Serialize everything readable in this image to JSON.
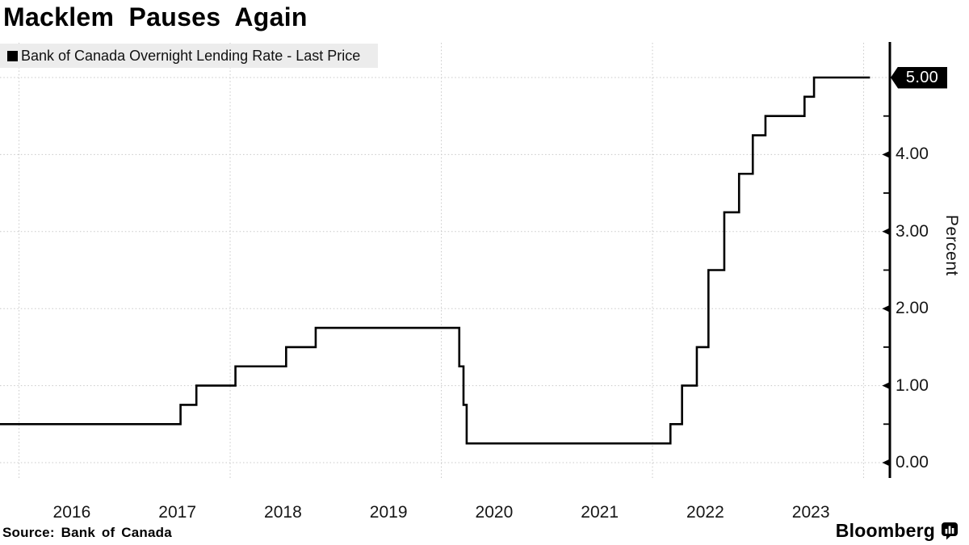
{
  "header": {
    "title": "Macklem Pauses Again"
  },
  "legend": {
    "swatch_color": "#000000",
    "label": "Bank of Canada Overnight Lending Rate - Last Price"
  },
  "footer": {
    "source": "Source: Bank of Canada",
    "brand": "Bloomberg",
    "brand_icon": "bloomberg-bars-bubble-icon"
  },
  "y_axis": {
    "axis_label": "Percent",
    "ticks": [
      {
        "value": 0,
        "label": "0.00"
      },
      {
        "value": 1,
        "label": "1.00"
      },
      {
        "value": 2,
        "label": "2.00"
      },
      {
        "value": 3,
        "label": "3.00"
      },
      {
        "value": 4,
        "label": "4.00"
      }
    ],
    "minor_tick_values": [
      0.5,
      1.5,
      2.5,
      3.5,
      4.5
    ],
    "last_price_label": "5.00",
    "last_price_value": 5.0
  },
  "x_axis": {
    "ticks": [
      {
        "t": 2016.5,
        "label": "2016"
      },
      {
        "t": 2017.5,
        "label": "2017"
      },
      {
        "t": 2018.5,
        "label": "2018"
      },
      {
        "t": 2019.5,
        "label": "2019"
      },
      {
        "t": 2020.5,
        "label": "2020"
      },
      {
        "t": 2021.5,
        "label": "2021"
      },
      {
        "t": 2022.5,
        "label": "2022"
      },
      {
        "t": 2023.5,
        "label": "2023"
      }
    ],
    "gridline_years": [
      2016,
      2018,
      2020,
      2022,
      2024
    ]
  },
  "chart_data": {
    "type": "line",
    "step": true,
    "title": "Macklem Pauses Again",
    "xlabel": "",
    "ylabel": "Percent",
    "grid": "dotted",
    "legend_position": "top-left",
    "x_domain_years": [
      2015.82,
      2024.25
    ],
    "ylim": [
      -0.2,
      5.45
    ],
    "y_major_gridlines": [
      0,
      1,
      2,
      3,
      4,
      5
    ],
    "last_price": 5.0,
    "series": [
      {
        "name": "Bank of Canada Overnight Lending Rate - Last Price",
        "units": "percent",
        "points": [
          [
            2015.82,
            0.5
          ],
          [
            2017.53,
            0.75
          ],
          [
            2017.68,
            1.0
          ],
          [
            2018.05,
            1.25
          ],
          [
            2018.53,
            1.5
          ],
          [
            2018.81,
            1.75
          ],
          [
            2020.17,
            1.25
          ],
          [
            2020.21,
            0.75
          ],
          [
            2020.24,
            0.25
          ],
          [
            2022.17,
            0.5
          ],
          [
            2022.28,
            1.0
          ],
          [
            2022.42,
            1.5
          ],
          [
            2022.53,
            2.5
          ],
          [
            2022.68,
            3.25
          ],
          [
            2022.82,
            3.75
          ],
          [
            2022.95,
            4.25
          ],
          [
            2023.07,
            4.5
          ],
          [
            2023.44,
            4.75
          ],
          [
            2023.53,
            5.0
          ],
          [
            2024.06,
            5.0
          ]
        ]
      }
    ]
  }
}
